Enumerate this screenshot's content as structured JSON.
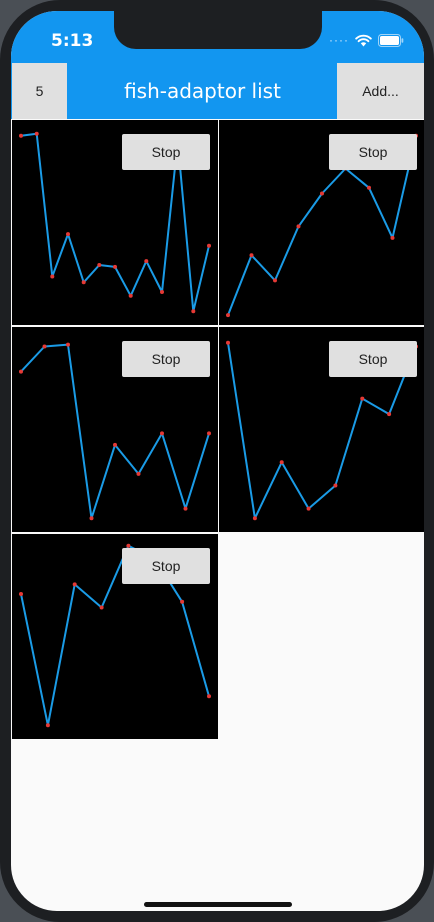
{
  "status_bar": {
    "time": "5:13",
    "icons": [
      "signal-dots-icon",
      "wifi-icon",
      "battery-icon"
    ]
  },
  "app_bar": {
    "count_label": "5",
    "title": "fish-adaptor list",
    "add_label": "Add..."
  },
  "colors": {
    "app_bar": "#1296f0",
    "line": "#1a9be6",
    "point": "#e53935",
    "tile_background": "#000000",
    "button": "#e0e0e0"
  },
  "tiles": [
    {
      "button_label": "Stop"
    },
    {
      "button_label": "Stop"
    },
    {
      "button_label": "Stop"
    },
    {
      "button_label": "Stop"
    },
    {
      "button_label": "Stop"
    }
  ],
  "chart_data": [
    {
      "type": "line",
      "values": [
        0.95,
        0.96,
        0.22,
        0.44,
        0.19,
        0.28,
        0.27,
        0.12,
        0.3,
        0.14,
        0.92,
        0.04,
        0.38
      ]
    },
    {
      "type": "line",
      "values": [
        0.02,
        0.33,
        0.2,
        0.48,
        0.65,
        0.78,
        0.68,
        0.42,
        0.95
      ]
    },
    {
      "type": "line",
      "values": [
        0.8,
        0.93,
        0.94,
        0.04,
        0.42,
        0.27,
        0.48,
        0.09,
        0.48
      ]
    },
    {
      "type": "line",
      "values": [
        0.95,
        0.04,
        0.33,
        0.09,
        0.21,
        0.66,
        0.58,
        0.93
      ]
    },
    {
      "type": "line",
      "values": [
        0.72,
        0.04,
        0.77,
        0.65,
        0.97,
        0.9,
        0.68,
        0.19
      ]
    }
  ]
}
